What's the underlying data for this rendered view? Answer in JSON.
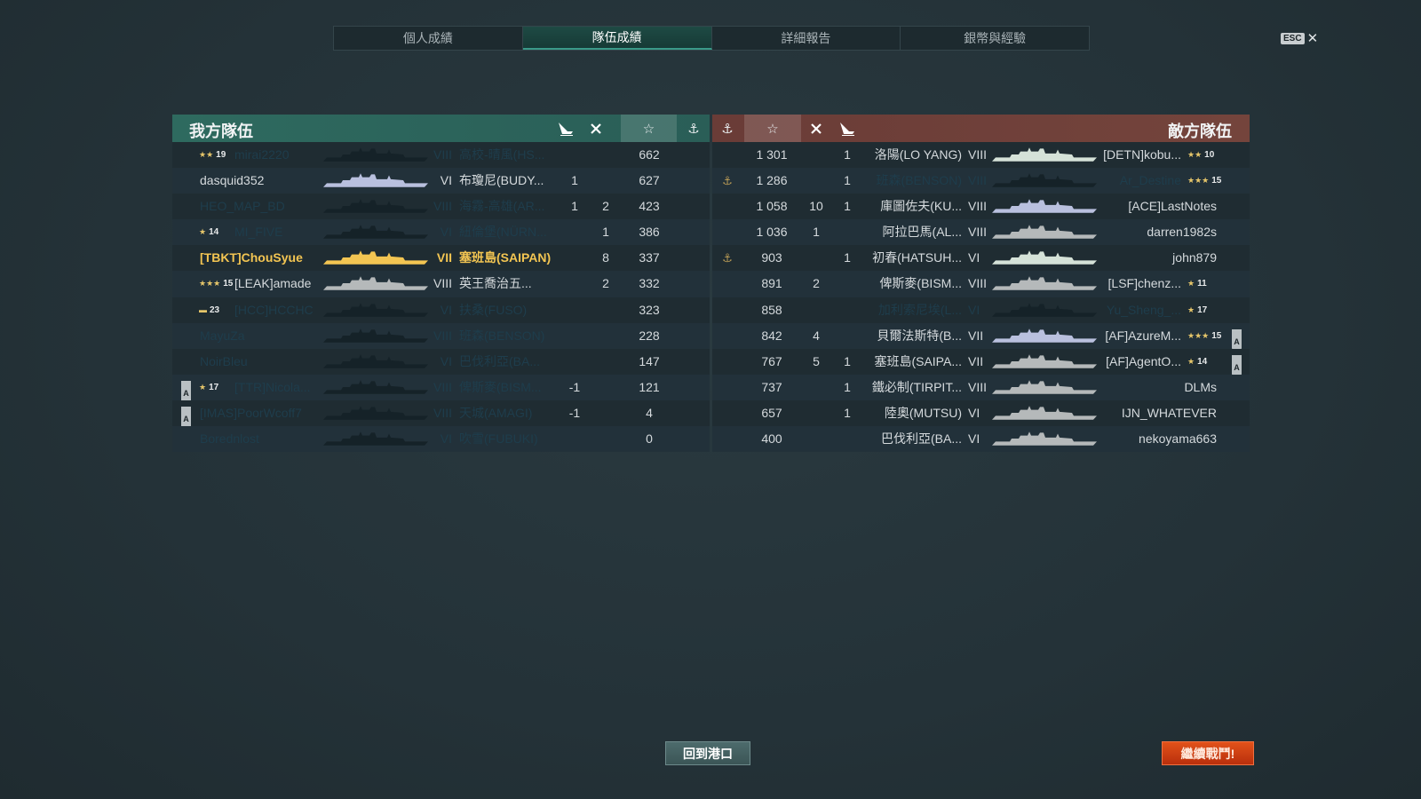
{
  "tabs": [
    {
      "label": "個人成績"
    },
    {
      "label": "隊伍成績",
      "active": true
    },
    {
      "label": "詳細報告"
    },
    {
      "label": "銀幣與經驗"
    }
  ],
  "esc": {
    "key": "ESC",
    "close": "✕"
  },
  "colors": {
    "ally_header": "#2e6a5f",
    "enemy_header": "#6a3c37",
    "highlight": "#f3c552",
    "dead_text": "#1e3d4c"
  },
  "ally": {
    "title": "我方隊伍",
    "header_icons": [
      "ship-sunk-icon",
      "plane-destroyed-icon",
      "star-icon",
      "anchor-icon"
    ],
    "star_glyph": "☆",
    "anchor_glyph": "⚓",
    "rows": [
      {
        "rank": {
          "stars": "★★",
          "level": "19"
        },
        "name": "mirai2220",
        "tier": "VIII",
        "ship": "高校-晴風(HS...",
        "kills": "",
        "planes": "",
        "xp": "662",
        "dead": true,
        "ship_color": "#152228"
      },
      {
        "name": "dasquid352",
        "tier": "VI",
        "ship": "布瓊尼(BUDY...",
        "kills": "1",
        "planes": "",
        "xp": "627",
        "ship_color": "#b9c0de"
      },
      {
        "name": "HEO_MAP_BD",
        "tier": "VIII",
        "ship": "海霧-高雄(AR...",
        "kills": "1",
        "planes": "2",
        "xp": "423",
        "dead": true,
        "ship_color": "#152228"
      },
      {
        "rank": {
          "stars": "★",
          "level": "14"
        },
        "name": "MI_FIVE",
        "tier": "VI",
        "ship": "紐倫堡(NÜRN...",
        "kills": "",
        "planes": "1",
        "xp": "386",
        "dead": true,
        "ship_color": "#152228"
      },
      {
        "name": "[TBKT]ChouSyue",
        "tier": "VII",
        "ship": "塞班島(SAIPAN)",
        "kills": "",
        "planes": "8",
        "xp": "337",
        "self": true,
        "ship_color": "#f3c552"
      },
      {
        "rank": {
          "stars": "★★★",
          "level": "15"
        },
        "name": "[LEAK]amade",
        "tier": "VIII",
        "ship": "英王喬治五...",
        "kills": "",
        "planes": "2",
        "xp": "332",
        "ship_color": "#b5b9ba"
      },
      {
        "rank": {
          "stars": "▬",
          "level": "23"
        },
        "name": "[HCC]HCCHC",
        "tier": "VI",
        "ship": "扶桑(FUSO)",
        "kills": "",
        "planes": "",
        "xp": "323",
        "dead": true,
        "ship_color": "#152228"
      },
      {
        "name": "MayuZa",
        "tier": "VIII",
        "ship": "班森(BENSON)",
        "kills": "",
        "planes": "",
        "xp": "228",
        "dead": true,
        "ship_color": "#152228"
      },
      {
        "name": "NoirBleu",
        "tier": "VI",
        "ship": "巴伐利亞(BA...",
        "kills": "",
        "planes": "",
        "xp": "147",
        "dead": true,
        "ship_color": "#152228"
      },
      {
        "badge": "A",
        "rank": {
          "stars": "★",
          "level": "17"
        },
        "name": "[TTR]Nicola...",
        "tier": "VIII",
        "ship": "俾斯麥(BISM...",
        "kills": "-1",
        "planes": "",
        "xp": "121",
        "dead": true,
        "ship_color": "#152228"
      },
      {
        "badge": "A",
        "name": "[IMAS]PoorWcoff7",
        "tier": "VIII",
        "ship": "天城(AMAGI)",
        "kills": "-1",
        "planes": "",
        "xp": "4",
        "dead": true,
        "ship_color": "#152228"
      },
      {
        "name": "Borednlost",
        "tier": "VI",
        "ship": "吹雪(FUBUKI)",
        "kills": "",
        "planes": "",
        "xp": "0",
        "dead": true,
        "ship_color": "#152228"
      }
    ]
  },
  "enemy": {
    "title": "敵方隊伍",
    "header_icons": [
      "anchor-icon",
      "star-icon",
      "plane-destroyed-icon",
      "ship-sunk-icon"
    ],
    "rows": [
      {
        "xp": "1 301",
        "planes": "",
        "kills": "1",
        "ship": "洛陽(LO  YANG)",
        "tier": "VIII",
        "name": "[DETN]kobu...",
        "rank": {
          "stars": "★★",
          "level": "10"
        },
        "ship_color": "#d5e2d8"
      },
      {
        "anchor": true,
        "xp": "1 286",
        "planes": "",
        "kills": "1",
        "ship": "班森(BENSON)",
        "tier": "VIII",
        "name": "Ar_Destine",
        "rank": {
          "stars": "★★★",
          "level": "15"
        },
        "dead": true,
        "ship_color": "#152228"
      },
      {
        "xp": "1 058",
        "planes": "10",
        "kills": "1",
        "ship": "庫圖佐夫(KU...",
        "tier": "VIII",
        "name": "[ACE]LastNotes",
        "ship_color": "#b9c0de"
      },
      {
        "xp": "1 036",
        "planes": "1",
        "kills": "",
        "ship": "阿拉巴馬(AL...",
        "tier": "VIII",
        "name": "darren1982s",
        "ship_color": "#b5b9ba"
      },
      {
        "anchor": true,
        "xp": "903",
        "planes": "",
        "kills": "1",
        "ship": "初春(HATSUH...",
        "tier": "VI",
        "name": "john879",
        "ship_color": "#d5e2d8"
      },
      {
        "xp": "891",
        "planes": "2",
        "kills": "",
        "ship": "俾斯麥(BISM...",
        "tier": "VIII",
        "name": "[LSF]chenz...",
        "rank": {
          "stars": "★",
          "level": "11"
        },
        "ship_color": "#b5b9ba"
      },
      {
        "xp": "858",
        "planes": "",
        "kills": "",
        "ship": "加利索尼埃(L...",
        "tier": "VI",
        "name": "Yu_Sheng_...",
        "rank": {
          "stars": "★",
          "level": "17"
        },
        "dead": true,
        "ship_color": "#152228"
      },
      {
        "xp": "842",
        "planes": "4",
        "kills": "",
        "ship": "貝爾法斯特(B...",
        "tier": "VII",
        "name": "[AF]AzureM...",
        "rank": {
          "stars": "★★★",
          "level": "15"
        },
        "badge": "A",
        "ship_color": "#b9c0de"
      },
      {
        "xp": "767",
        "planes": "5",
        "kills": "1",
        "ship": "塞班島(SAIPA...",
        "tier": "VII",
        "name": "[AF]AgentO...",
        "rank": {
          "stars": "★",
          "level": "14"
        },
        "badge": "A",
        "ship_color": "#b5b9ba"
      },
      {
        "xp": "737",
        "planes": "",
        "kills": "1",
        "ship": "鐵必制(TIRPIT...",
        "tier": "VIII",
        "name": "DLMs",
        "ship_color": "#b5b9ba"
      },
      {
        "xp": "657",
        "planes": "",
        "kills": "1",
        "ship": "陸奧(MUTSU)",
        "tier": "VI",
        "name": "IJN_WHATEVER",
        "ship_color": "#b5b9ba"
      },
      {
        "xp": "400",
        "planes": "",
        "kills": "",
        "ship": "巴伐利亞(BA...",
        "tier": "VI",
        "name": "nekoyama663",
        "ship_color": "#b5b9ba"
      }
    ]
  },
  "buttons": {
    "return_port": "回到港口",
    "continue_battle": "繼續戰鬥!"
  }
}
